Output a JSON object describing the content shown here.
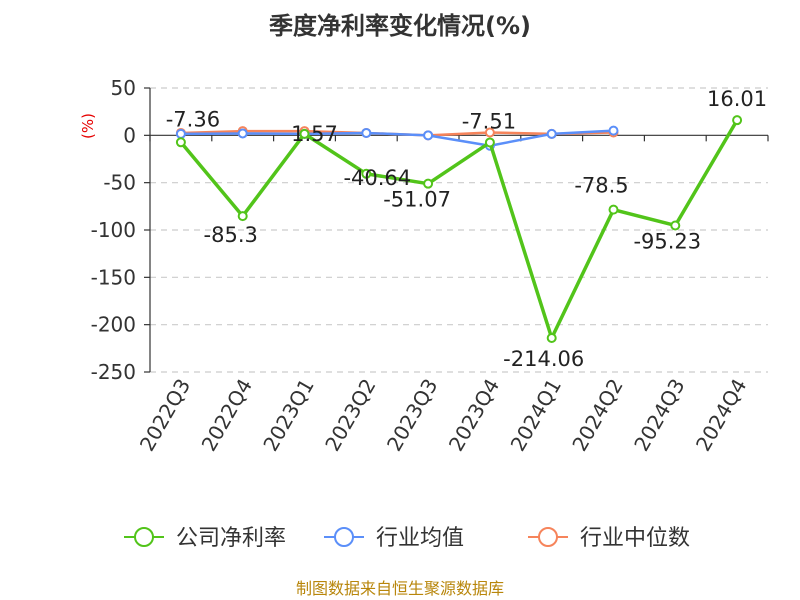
{
  "chart_data": {
    "type": "line",
    "title": "季度净利率变化情况(%)",
    "unit_label": "(%)",
    "categories": [
      "2022Q3",
      "2022Q4",
      "2023Q1",
      "2023Q2",
      "2023Q3",
      "2023Q4",
      "2024Q1",
      "2024Q2",
      "2024Q3",
      "2024Q4"
    ],
    "ylim": [
      -250,
      50
    ],
    "yticks": [
      50,
      0,
      -50,
      -100,
      -150,
      -200,
      -250
    ],
    "grid": true,
    "legend_position": "bottom",
    "series": [
      {
        "name": "公司净利率",
        "color": "#52c41a",
        "values": [
          -7.36,
          -85.3,
          1.57,
          -40.64,
          -51.07,
          -7.51,
          -214.06,
          -78.5,
          -95.23,
          16.01
        ],
        "labels": [
          "-7.36",
          "-85.3",
          "1.57",
          "-40.64",
          "-51.07",
          "-7.51",
          "-214.06",
          "-78.5",
          "-95.23",
          "16.01"
        ]
      },
      {
        "name": "行业均值",
        "color": "#5b8ff9",
        "values": [
          1.5,
          2.0,
          1.5,
          2.5,
          0.0,
          -11.0,
          1.5,
          5.0,
          null,
          null
        ]
      },
      {
        "name": "行业中位数",
        "color": "#f6845b",
        "values": [
          2.5,
          4.5,
          4.5,
          2.5,
          0.0,
          3.0,
          1.5,
          3.0,
          null,
          null
        ]
      }
    ]
  },
  "footer": "制图数据来自恒生聚源数据库"
}
